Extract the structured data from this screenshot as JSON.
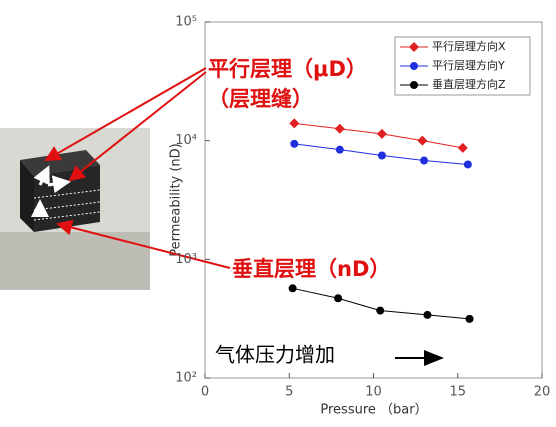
{
  "chart_data": {
    "type": "line",
    "xlabel": "Pressure （bar）",
    "ylabel": "Permeability (nD)",
    "yscale": "log",
    "xlim": [
      0,
      20
    ],
    "xticks": [
      0,
      5,
      10,
      15,
      20
    ],
    "ylim": [
      100,
      100000
    ],
    "yticks": [
      {
        "value": 100,
        "label": "10²"
      },
      {
        "value": 1000,
        "label": "10³"
      },
      {
        "value": 10000,
        "label": "10⁴"
      },
      {
        "value": 100000,
        "label": "10⁵"
      }
    ],
    "series": [
      {
        "name": "平行层理方向X",
        "color": "#e02020",
        "marker": "diamond",
        "x": [
          5.3,
          8.0,
          10.5,
          12.9,
          15.3
        ],
        "values": [
          14000,
          12600,
          11400,
          10000,
          8700
        ]
      },
      {
        "name": "平行层理方向Y",
        "color": "#1f2fe0",
        "marker": "circle",
        "x": [
          5.3,
          8.0,
          10.5,
          13.0,
          15.6
        ],
        "values": [
          9400,
          8400,
          7500,
          6800,
          6300
        ]
      },
      {
        "name": "垂直层理方向Z",
        "color": "#000000",
        "marker": "circle",
        "x": [
          5.2,
          7.9,
          10.4,
          13.2,
          15.7
        ],
        "values": [
          570,
          470,
          370,
          340,
          315
        ]
      }
    ],
    "annotations": [
      "平行层理（μD）",
      "（层理缝）",
      "垂直层理（nD）",
      "气体压力增加"
    ]
  }
}
